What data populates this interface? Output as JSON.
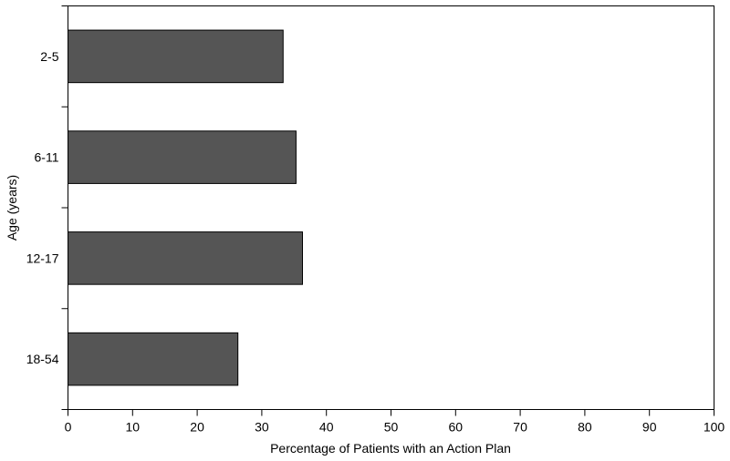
{
  "chart_data": {
    "type": "bar",
    "orientation": "horizontal",
    "categories": [
      "2-5",
      "6-11",
      "12-17",
      "18-54"
    ],
    "values": [
      33.3,
      35.3,
      36.3,
      26.3
    ],
    "xlabel": "Percentage of Patients with an Action Plan",
    "ylabel": "Age (years)",
    "xlim": [
      0,
      100
    ],
    "xticks": [
      0,
      10,
      20,
      30,
      40,
      50,
      60,
      70,
      80,
      90,
      100
    ],
    "grid": false,
    "bar_color": "#555555"
  }
}
